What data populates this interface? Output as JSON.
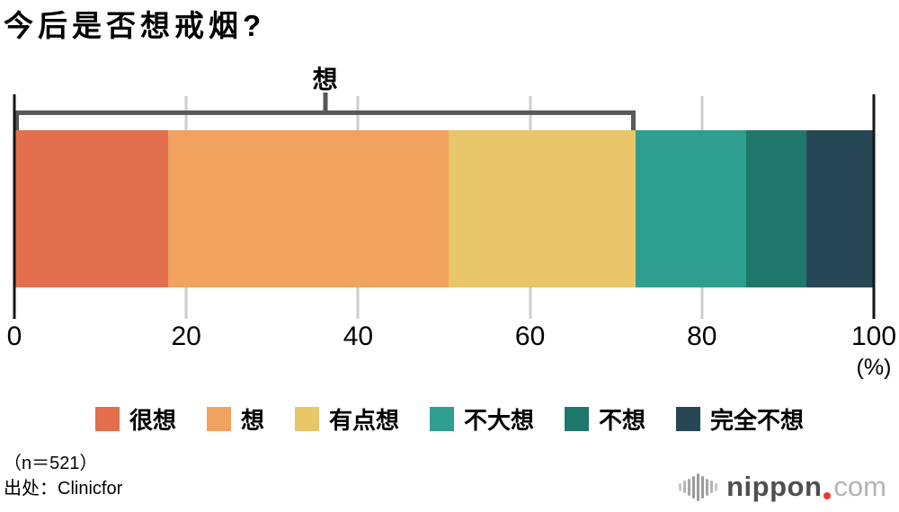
{
  "title": "今后是否想戒烟?",
  "chart_data": {
    "type": "bar",
    "subtype": "horizontal-stacked-percentage",
    "title": "今后是否想戒烟?",
    "xlim": [
      0,
      100
    ],
    "ticks": [
      0,
      20,
      40,
      60,
      80,
      100
    ],
    "unit_label": "(%)",
    "grid": true,
    "legend_position": "bottom",
    "series": [
      {
        "label": "很想",
        "value": 17.9,
        "color": "#E2704F"
      },
      {
        "label": "想",
        "value": 32.6,
        "color": "#F2A25F"
      },
      {
        "label": "有点想",
        "value": 21.8,
        "color": "#E9C669"
      },
      {
        "label": "不大想",
        "value": 12.8,
        "color": "#2E9E8F"
      },
      {
        "label": "不想",
        "value": 7.1,
        "color": "#20776B"
      },
      {
        "label": "完全不想",
        "value": 7.8,
        "color": "#274754"
      }
    ],
    "bracket": {
      "label": "想",
      "from": 0,
      "to": 72.3,
      "covers_first_n": 3
    }
  },
  "footer": {
    "sample_size": "（n＝521）",
    "source": "出处：Clinicfor"
  },
  "logo": {
    "name": "nippon",
    "tld": "com",
    "dot_color": "#e8392e",
    "icon_color": "#9b9b9b"
  },
  "colors": {
    "axis": "#141414",
    "gridline": "#cdcdcd",
    "bracket": "#56585a"
  }
}
